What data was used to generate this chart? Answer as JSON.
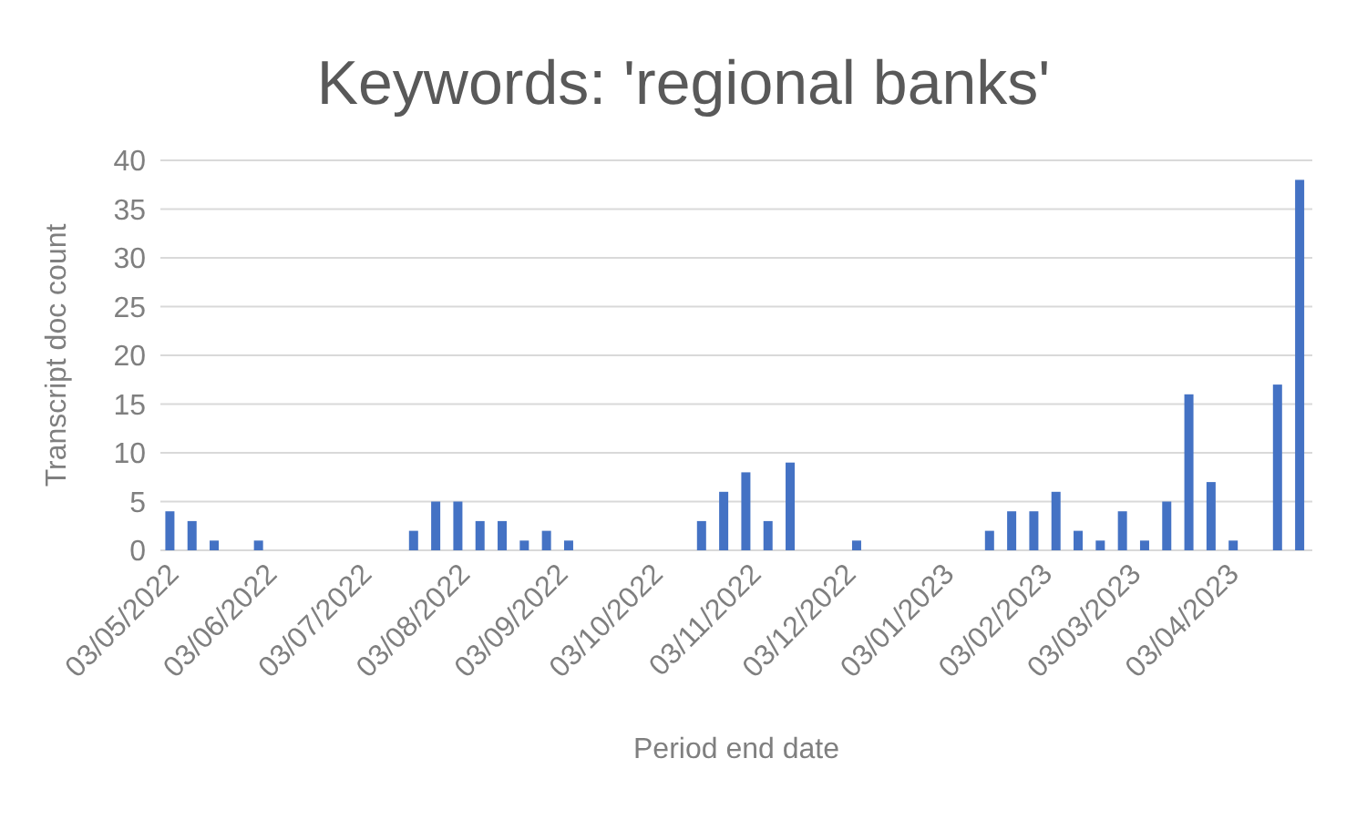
{
  "chart_data": {
    "type": "bar",
    "title": "Keywords: 'regional banks'",
    "xlabel": "Period end date",
    "ylabel": "Transcript doc count",
    "x": [
      "2022-05-02",
      "2022-05-09",
      "2022-05-16",
      "2022-05-30",
      "2022-07-18",
      "2022-07-25",
      "2022-08-01",
      "2022-08-08",
      "2022-08-15",
      "2022-08-22",
      "2022-08-29",
      "2022-09-05",
      "2022-10-17",
      "2022-10-24",
      "2022-10-31",
      "2022-11-07",
      "2022-11-14",
      "2022-12-05",
      "2023-01-16",
      "2023-01-23",
      "2023-01-30",
      "2023-02-06",
      "2023-02-13",
      "2023-02-20",
      "2023-02-27",
      "2023-03-06",
      "2023-03-13",
      "2023-03-20",
      "2023-03-27",
      "2023-04-03",
      "2023-04-17",
      "2023-04-24"
    ],
    "values": [
      4,
      3,
      1,
      1,
      2,
      5,
      5,
      3,
      3,
      1,
      2,
      1,
      3,
      6,
      8,
      3,
      9,
      1,
      2,
      4,
      4,
      6,
      2,
      1,
      4,
      1,
      5,
      16,
      7,
      1,
      17,
      38
    ],
    "color": "#4472c4",
    "xlim": [
      "2022-04-29",
      "2023-04-28"
    ],
    "xticks": [
      {
        "value": "2022-05-03",
        "label": "03/05/2022"
      },
      {
        "value": "2022-06-03",
        "label": "03/06/2022"
      },
      {
        "value": "2022-07-03",
        "label": "03/07/2022"
      },
      {
        "value": "2022-08-03",
        "label": "03/08/2022"
      },
      {
        "value": "2022-09-03",
        "label": "03/09/2022"
      },
      {
        "value": "2022-10-03",
        "label": "03/10/2022"
      },
      {
        "value": "2022-11-03",
        "label": "03/11/2022"
      },
      {
        "value": "2022-12-03",
        "label": "03/12/2022"
      },
      {
        "value": "2023-01-03",
        "label": "03/01/2023"
      },
      {
        "value": "2023-02-03",
        "label": "03/02/2023"
      },
      {
        "value": "2023-03-03",
        "label": "03/03/2023"
      },
      {
        "value": "2023-04-03",
        "label": "03/04/2023"
      }
    ],
    "ylim": [
      0,
      40
    ],
    "yticks": [
      0,
      5,
      10,
      15,
      20,
      25,
      30,
      35,
      40
    ],
    "grid": "y"
  }
}
